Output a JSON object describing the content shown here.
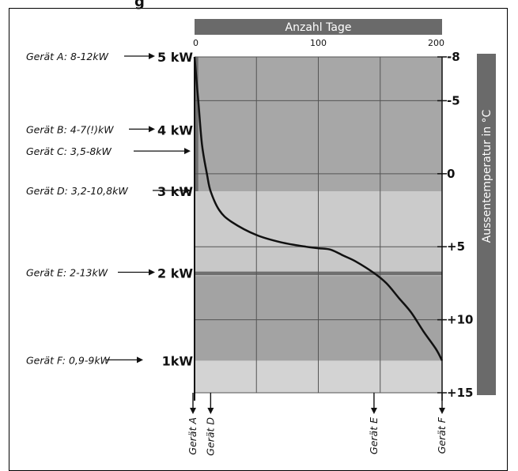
{
  "header_fragment": "g",
  "chart_data": {
    "type": "line",
    "top_axis": {
      "label": "Anzahl Tage",
      "ticks": [
        "0",
        "100",
        "200"
      ],
      "range": [
        0,
        200
      ],
      "gridlines": [
        0,
        50,
        100,
        150,
        200
      ]
    },
    "right_axis": {
      "label": "Aussentemperatur in °C",
      "ticks": [
        "-8",
        "-5",
        "0",
        "+5",
        "+10",
        "+15"
      ],
      "values": [
        -8,
        -5,
        0,
        5,
        10,
        15
      ],
      "range": [
        -8,
        15
      ]
    },
    "power_levels": [
      {
        "label": "5 kW",
        "device": "Gerät A: 8-12kW",
        "temp": -8
      },
      {
        "label": "4 kW",
        "device": "Gerät B: 4-7(!)kW",
        "temp": -3
      },
      {
        "label": "",
        "device": "Gerät C: 3,5-8kW",
        "temp": -1.5
      },
      {
        "label": "3 kW",
        "device": "Gerät D: 3,2-10,8kW",
        "temp": 1.2
      },
      {
        "label": "2 kW",
        "device": "Gerät E: 2-13kW",
        "temp": 6.8
      },
      {
        "label": "1kW",
        "device": "Gerät F: 0,9-9kW",
        "temp": 12.8
      }
    ],
    "series": [
      {
        "x": [
          0,
          3,
          6,
          10,
          13,
          20,
          30,
          50,
          70,
          90,
          100,
          110,
          120,
          130,
          145,
          155,
          165,
          175,
          185,
          195,
          200
        ],
        "y": [
          -8,
          -5,
          -2,
          0,
          1.2,
          2.5,
          3.3,
          4.2,
          4.7,
          5.0,
          5.1,
          5.2,
          5.6,
          6.0,
          6.8,
          7.5,
          8.5,
          9.5,
          10.8,
          12.0,
          12.8
        ]
      }
    ],
    "bands": [
      {
        "from": -8,
        "to": 5,
        "shade": "#a7a7a7"
      },
      {
        "from": 5,
        "to": 12.8,
        "shade": "#c8c8c8"
      },
      {
        "from": 12.8,
        "to": 15,
        "shade": "#d3d3d3"
      }
    ],
    "darker_regions": [
      {
        "x_from": 0,
        "x_to": 3,
        "t_from": -8,
        "t_to": 1.2,
        "shade": "#6f6f6f"
      },
      {
        "x_from": 0,
        "x_to": 200,
        "t_from": 6.7,
        "t_to": 6.95,
        "shade": "#6f6f6f"
      },
      {
        "x_from": 0,
        "x_to": 200,
        "t_from": 7.0,
        "t_to": 12.8,
        "shade": "#a3a3a3"
      },
      {
        "x_from": 0,
        "x_to": 200,
        "t_from": 1.2,
        "t_to": 5.0,
        "shade": "#cbcbcb"
      }
    ],
    "markers_bottom": [
      {
        "label": "Gerät A",
        "x": 0
      },
      {
        "label": "Gerät D",
        "x": 13
      },
      {
        "label": "Gerät E",
        "x": 145
      },
      {
        "label": "Gerät F",
        "x": 200
      }
    ],
    "colors": {
      "header": "#6a6a6a",
      "side": "#6a6a6a",
      "curve": "#111111",
      "grid": "#555555"
    }
  }
}
